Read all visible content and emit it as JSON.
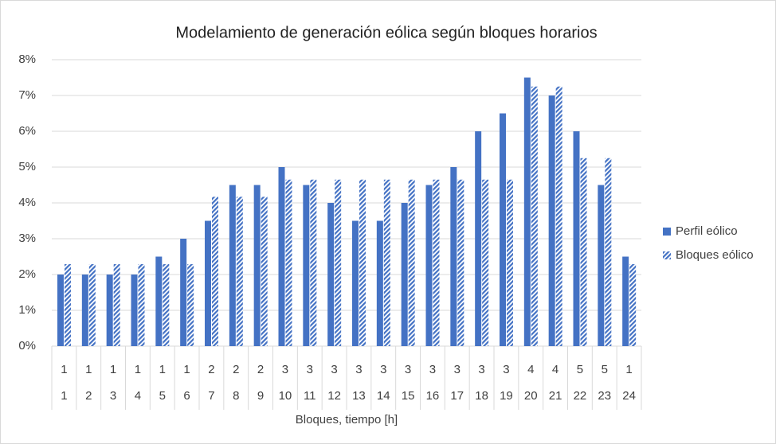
{
  "chart_data": {
    "type": "bar",
    "title": "Modelamiento de generación eólica según bloques horarios",
    "x_label": "Bloques, tiempo [h]",
    "category_groups": [
      "1",
      "1",
      "1",
      "1",
      "1",
      "1",
      "2",
      "2",
      "2",
      "3",
      "3",
      "3",
      "3",
      "3",
      "3",
      "3",
      "3",
      "3",
      "3",
      "4",
      "4",
      "5",
      "5",
      "1"
    ],
    "categories": [
      "1",
      "2",
      "3",
      "4",
      "5",
      "6",
      "7",
      "8",
      "9",
      "10",
      "11",
      "12",
      "13",
      "14",
      "15",
      "16",
      "17",
      "18",
      "19",
      "20",
      "21",
      "22",
      "23",
      "24"
    ],
    "series": [
      {
        "name": "Perfil eólico",
        "color": "#4472c4",
        "pattern": "solid",
        "values": [
          2,
          2,
          2,
          2,
          2.5,
          3,
          3.5,
          4.5,
          4.5,
          5,
          4.5,
          4,
          3.5,
          3.5,
          4,
          4.5,
          5,
          6,
          6.5,
          7.5,
          7,
          6,
          4.5,
          2.5
        ]
      },
      {
        "name": "Bloques eólico",
        "color": "#4472c4",
        "pattern": "hatch",
        "values": [
          2.29,
          2.29,
          2.29,
          2.29,
          2.29,
          2.29,
          4.17,
          4.17,
          4.17,
          4.65,
          4.65,
          4.65,
          4.65,
          4.65,
          4.65,
          4.65,
          4.65,
          4.65,
          4.65,
          7.25,
          7.25,
          5.25,
          5.25,
          2.29
        ]
      }
    ],
    "ylim": [
      0,
      8
    ],
    "yticks": [
      {
        "value": 0,
        "label": "0%"
      },
      {
        "value": 1,
        "label": "1%"
      },
      {
        "value": 2,
        "label": "2%"
      },
      {
        "value": 3,
        "label": "3%"
      },
      {
        "value": 4,
        "label": "4%"
      },
      {
        "value": 5,
        "label": "5%"
      },
      {
        "value": 6,
        "label": "6%"
      },
      {
        "value": 7,
        "label": "7%"
      },
      {
        "value": 8,
        "label": "8%"
      }
    ],
    "grid": true,
    "legend": "right"
  }
}
